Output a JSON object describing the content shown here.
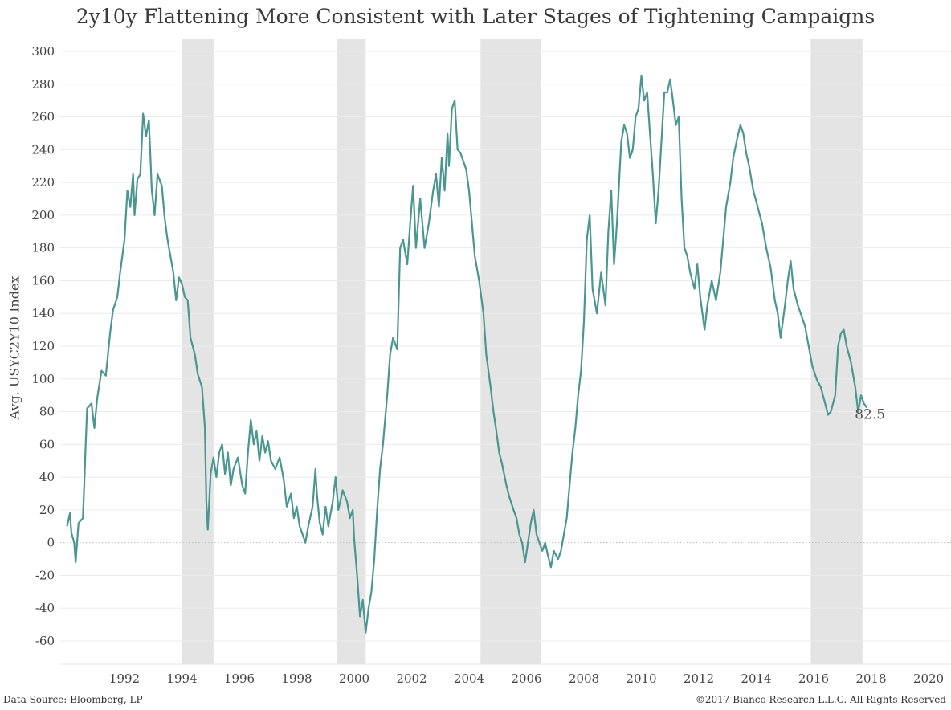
{
  "chart_data": {
    "type": "line",
    "title": "2y10y Flattening More Consistent with Later Stages of Tightening Campaigns",
    "ylabel": "Avg. USYC2Y10 Index",
    "xlabel": "",
    "ylim": [
      -70,
      305
    ],
    "xlim": [
      1990.0,
      2020.4
    ],
    "y_ticks": [
      300,
      280,
      260,
      240,
      220,
      200,
      180,
      160,
      140,
      120,
      100,
      80,
      60,
      40,
      20,
      0,
      -20,
      -40,
      -60
    ],
    "x_ticks": [
      "1992",
      "1994",
      "1996",
      "1998",
      "2000",
      "2002",
      "2004",
      "2006",
      "2008",
      "2010",
      "2012",
      "2014",
      "2016",
      "2018",
      "2020"
    ],
    "grid": "horizontal",
    "shaded_periods": [
      [
        1994.0,
        1995.1
      ],
      [
        1999.4,
        2000.4
      ],
      [
        2004.4,
        2006.5
      ],
      [
        2015.9,
        2017.7
      ]
    ],
    "series": [
      {
        "color": "#4a9690",
        "points": [
          [
            1990.0,
            10
          ],
          [
            1990.1,
            18
          ],
          [
            1990.15,
            6
          ],
          [
            1990.25,
            0
          ],
          [
            1990.3,
            -12
          ],
          [
            1990.4,
            12
          ],
          [
            1990.55,
            15
          ],
          [
            1990.6,
            35
          ],
          [
            1990.65,
            60
          ],
          [
            1990.7,
            82
          ],
          [
            1990.85,
            85
          ],
          [
            1990.95,
            70
          ],
          [
            1991.05,
            88
          ],
          [
            1991.2,
            105
          ],
          [
            1991.35,
            102
          ],
          [
            1991.5,
            128
          ],
          [
            1991.6,
            142
          ],
          [
            1991.75,
            150
          ],
          [
            1991.85,
            165
          ],
          [
            1992.0,
            185
          ],
          [
            1992.1,
            215
          ],
          [
            1992.2,
            205
          ],
          [
            1992.3,
            225
          ],
          [
            1992.35,
            200
          ],
          [
            1992.45,
            222
          ],
          [
            1992.55,
            225
          ],
          [
            1992.65,
            262
          ],
          [
            1992.75,
            248
          ],
          [
            1992.85,
            258
          ],
          [
            1992.95,
            215
          ],
          [
            1993.05,
            200
          ],
          [
            1993.15,
            225
          ],
          [
            1993.3,
            218
          ],
          [
            1993.4,
            198
          ],
          [
            1993.5,
            185
          ],
          [
            1993.6,
            175
          ],
          [
            1993.7,
            165
          ],
          [
            1993.8,
            148
          ],
          [
            1993.9,
            162
          ],
          [
            1994.0,
            158
          ],
          [
            1994.1,
            150
          ],
          [
            1994.2,
            148
          ],
          [
            1994.3,
            125
          ],
          [
            1994.45,
            115
          ],
          [
            1994.55,
            103
          ],
          [
            1994.7,
            95
          ],
          [
            1994.8,
            70
          ],
          [
            1994.85,
            25
          ],
          [
            1994.9,
            8
          ],
          [
            1995.0,
            42
          ],
          [
            1995.1,
            52
          ],
          [
            1995.2,
            40
          ],
          [
            1995.3,
            55
          ],
          [
            1995.4,
            60
          ],
          [
            1995.5,
            42
          ],
          [
            1995.6,
            55
          ],
          [
            1995.7,
            35
          ],
          [
            1995.8,
            45
          ],
          [
            1995.95,
            52
          ],
          [
            1996.1,
            35
          ],
          [
            1996.2,
            30
          ],
          [
            1996.3,
            55
          ],
          [
            1996.4,
            75
          ],
          [
            1996.5,
            60
          ],
          [
            1996.6,
            68
          ],
          [
            1996.7,
            50
          ],
          [
            1996.8,
            65
          ],
          [
            1996.9,
            55
          ],
          [
            1997.0,
            62
          ],
          [
            1997.1,
            50
          ],
          [
            1997.25,
            45
          ],
          [
            1997.4,
            52
          ],
          [
            1997.55,
            38
          ],
          [
            1997.65,
            22
          ],
          [
            1997.8,
            30
          ],
          [
            1997.9,
            15
          ],
          [
            1998.0,
            22
          ],
          [
            1998.1,
            10
          ],
          [
            1998.2,
            5
          ],
          [
            1998.3,
            0
          ],
          [
            1998.4,
            10
          ],
          [
            1998.55,
            22
          ],
          [
            1998.65,
            45
          ],
          [
            1998.7,
            30
          ],
          [
            1998.8,
            12
          ],
          [
            1998.9,
            5
          ],
          [
            1999.0,
            22
          ],
          [
            1999.1,
            10
          ],
          [
            1999.25,
            25
          ],
          [
            1999.35,
            40
          ],
          [
            1999.45,
            20
          ],
          [
            1999.6,
            32
          ],
          [
            1999.75,
            25
          ],
          [
            1999.85,
            15
          ],
          [
            1999.95,
            20
          ],
          [
            2000.0,
            2
          ],
          [
            2000.1,
            -20
          ],
          [
            2000.2,
            -45
          ],
          [
            2000.3,
            -35
          ],
          [
            2000.4,
            -55
          ],
          [
            2000.5,
            -40
          ],
          [
            2000.6,
            -30
          ],
          [
            2000.7,
            -10
          ],
          [
            2000.8,
            20
          ],
          [
            2000.9,
            45
          ],
          [
            2001.0,
            60
          ],
          [
            2001.15,
            90
          ],
          [
            2001.25,
            115
          ],
          [
            2001.35,
            125
          ],
          [
            2001.5,
            118
          ],
          [
            2001.6,
            180
          ],
          [
            2001.7,
            185
          ],
          [
            2001.85,
            170
          ],
          [
            2001.95,
            195
          ],
          [
            2002.05,
            218
          ],
          [
            2002.15,
            180
          ],
          [
            2002.3,
            210
          ],
          [
            2002.45,
            180
          ],
          [
            2002.6,
            195
          ],
          [
            2002.75,
            215
          ],
          [
            2002.85,
            225
          ],
          [
            2002.95,
            205
          ],
          [
            2003.05,
            235
          ],
          [
            2003.15,
            215
          ],
          [
            2003.25,
            250
          ],
          [
            2003.3,
            230
          ],
          [
            2003.4,
            265
          ],
          [
            2003.5,
            270
          ],
          [
            2003.6,
            240
          ],
          [
            2003.7,
            238
          ],
          [
            2003.8,
            233
          ],
          [
            2003.9,
            228
          ],
          [
            2004.0,
            215
          ],
          [
            2004.1,
            195
          ],
          [
            2004.2,
            175
          ],
          [
            2004.35,
            160
          ],
          [
            2004.5,
            140
          ],
          [
            2004.6,
            115
          ],
          [
            2004.75,
            95
          ],
          [
            2004.85,
            80
          ],
          [
            2004.95,
            68
          ],
          [
            2005.05,
            55
          ],
          [
            2005.15,
            48
          ],
          [
            2005.3,
            35
          ],
          [
            2005.4,
            28
          ],
          [
            2005.55,
            20
          ],
          [
            2005.65,
            15
          ],
          [
            2005.75,
            5
          ],
          [
            2005.85,
            0
          ],
          [
            2005.95,
            -12
          ],
          [
            2006.05,
            0
          ],
          [
            2006.15,
            12
          ],
          [
            2006.25,
            20
          ],
          [
            2006.35,
            5
          ],
          [
            2006.45,
            0
          ],
          [
            2006.55,
            -5
          ],
          [
            2006.65,
            0
          ],
          [
            2006.75,
            -8
          ],
          [
            2006.85,
            -15
          ],
          [
            2006.95,
            -5
          ],
          [
            2007.1,
            -10
          ],
          [
            2007.2,
            -5
          ],
          [
            2007.3,
            5
          ],
          [
            2007.4,
            15
          ],
          [
            2007.5,
            35
          ],
          [
            2007.6,
            55
          ],
          [
            2007.7,
            70
          ],
          [
            2007.8,
            90
          ],
          [
            2007.9,
            105
          ],
          [
            2008.0,
            135
          ],
          [
            2008.1,
            185
          ],
          [
            2008.2,
            200
          ],
          [
            2008.3,
            155
          ],
          [
            2008.45,
            140
          ],
          [
            2008.6,
            165
          ],
          [
            2008.75,
            145
          ],
          [
            2008.85,
            190
          ],
          [
            2008.95,
            215
          ],
          [
            2009.05,
            170
          ],
          [
            2009.15,
            195
          ],
          [
            2009.3,
            245
          ],
          [
            2009.4,
            255
          ],
          [
            2009.5,
            250
          ],
          [
            2009.6,
            235
          ],
          [
            2009.7,
            240
          ],
          [
            2009.8,
            260
          ],
          [
            2009.9,
            265
          ],
          [
            2010.0,
            285
          ],
          [
            2010.1,
            270
          ],
          [
            2010.2,
            275
          ],
          [
            2010.3,
            250
          ],
          [
            2010.4,
            225
          ],
          [
            2010.5,
            195
          ],
          [
            2010.6,
            215
          ],
          [
            2010.7,
            245
          ],
          [
            2010.8,
            275
          ],
          [
            2010.9,
            275
          ],
          [
            2011.0,
            283
          ],
          [
            2011.1,
            270
          ],
          [
            2011.2,
            255
          ],
          [
            2011.3,
            260
          ],
          [
            2011.4,
            210
          ],
          [
            2011.5,
            180
          ],
          [
            2011.6,
            175
          ],
          [
            2011.7,
            165
          ],
          [
            2011.85,
            155
          ],
          [
            2011.95,
            170
          ],
          [
            2012.05,
            150
          ],
          [
            2012.2,
            130
          ],
          [
            2012.3,
            145
          ],
          [
            2012.45,
            160
          ],
          [
            2012.6,
            148
          ],
          [
            2012.75,
            165
          ],
          [
            2012.85,
            185
          ],
          [
            2012.95,
            205
          ],
          [
            2013.1,
            220
          ],
          [
            2013.2,
            235
          ],
          [
            2013.35,
            248
          ],
          [
            2013.45,
            255
          ],
          [
            2013.55,
            250
          ],
          [
            2013.65,
            238
          ],
          [
            2013.75,
            230
          ],
          [
            2013.9,
            215
          ],
          [
            2014.05,
            205
          ],
          [
            2014.2,
            195
          ],
          [
            2014.35,
            180
          ],
          [
            2014.5,
            168
          ],
          [
            2014.65,
            148
          ],
          [
            2014.75,
            140
          ],
          [
            2014.85,
            125
          ],
          [
            2015.0,
            145
          ],
          [
            2015.1,
            160
          ],
          [
            2015.2,
            172
          ],
          [
            2015.3,
            155
          ],
          [
            2015.45,
            145
          ],
          [
            2015.55,
            140
          ],
          [
            2015.7,
            132
          ],
          [
            2015.85,
            118
          ],
          [
            2015.95,
            108
          ],
          [
            2016.1,
            100
          ],
          [
            2016.25,
            95
          ],
          [
            2016.4,
            85
          ],
          [
            2016.5,
            78
          ],
          [
            2016.6,
            80
          ],
          [
            2016.75,
            90
          ],
          [
            2016.85,
            120
          ],
          [
            2016.95,
            128
          ],
          [
            2017.05,
            130
          ],
          [
            2017.15,
            120
          ],
          [
            2017.3,
            110
          ],
          [
            2017.45,
            95
          ],
          [
            2017.55,
            80
          ],
          [
            2017.65,
            90
          ],
          [
            2017.75,
            85
          ],
          [
            2017.85,
            82.5
          ]
        ]
      }
    ],
    "annotations": [
      {
        "text": "82.5",
        "x": 2017.85,
        "y": 82.5
      }
    ]
  },
  "footer": {
    "source": "Data Source: Bloomberg, LP",
    "copyright": "©2017 Bianco Research L.L.C.  All Rights Reserved"
  }
}
